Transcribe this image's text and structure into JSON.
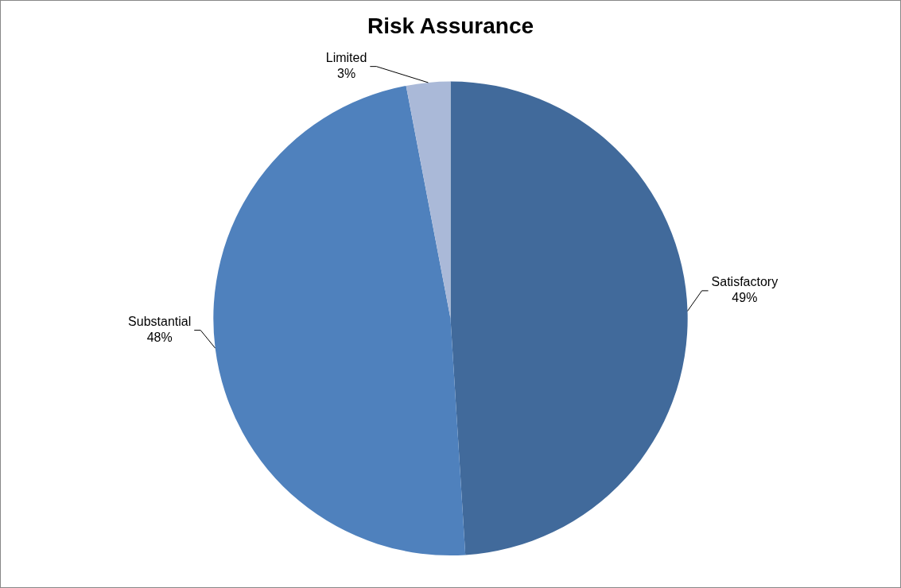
{
  "chart_data": {
    "type": "pie",
    "title": "Risk Assurance",
    "categories": [
      "Satisfactory",
      "Substantial",
      "Limited"
    ],
    "values": [
      49,
      48,
      3
    ],
    "colors": [
      "#416a9b",
      "#4f81bd",
      "#aab9d8"
    ],
    "value_labels": [
      "49%",
      "48%",
      "3%"
    ],
    "legend": false
  }
}
